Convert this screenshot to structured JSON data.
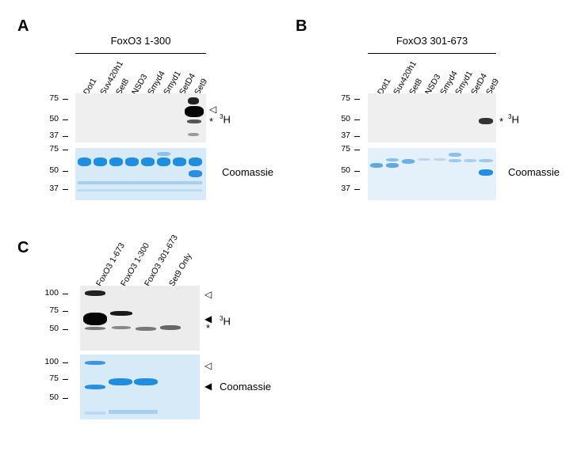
{
  "panels": {
    "A": {
      "letter": "A",
      "header": "FoxO3 1-300",
      "lanes": [
        "Dot1",
        "Suv420h1",
        "Set8",
        "NSD3",
        "Smyd4",
        "Smyd1",
        "SetD4",
        "Set9"
      ],
      "blot_markers": [
        "75",
        "50",
        "37"
      ],
      "gel_markers": [
        "75",
        "50",
        "37"
      ],
      "label_blot": "H",
      "label_blot_sup": "3",
      "label_gel": "Coomassie",
      "symbols": {
        "open_arrow": "◁",
        "star": "*"
      }
    },
    "B": {
      "letter": "B",
      "header": "FoxO3 301-673",
      "lanes": [
        "Dot1",
        "Suv420h1",
        "Set8",
        "NSD3",
        "Smyd4",
        "Smyd1",
        "SetD4",
        "Set9"
      ],
      "blot_markers": [
        "75",
        "50",
        "37"
      ],
      "gel_markers": [
        "75",
        "50",
        "37"
      ],
      "label_blot": "H",
      "label_blot_sup": "3",
      "label_gel": "Coomassie",
      "symbols": {
        "star": "*"
      }
    },
    "C": {
      "letter": "C",
      "lanes": [
        "FoxO3 1-673",
        "FoxO3 1-300",
        "FoxO3 301-673",
        "Set9 Only"
      ],
      "blot_markers": [
        "100",
        "75",
        "50"
      ],
      "gel_markers": [
        "100",
        "75",
        "50"
      ],
      "label_blot": "H",
      "label_blot_sup": "3",
      "label_gel": "Coomassie",
      "symbols": {
        "open_arrow": "◁",
        "filled_arrow": "◀",
        "star": "*"
      }
    }
  },
  "colors": {
    "blot_bg": "#efefef",
    "gel_bg": "#d7eaf7",
    "coomassie_band": "#1f8ee0",
    "signal_band": "#111111"
  }
}
